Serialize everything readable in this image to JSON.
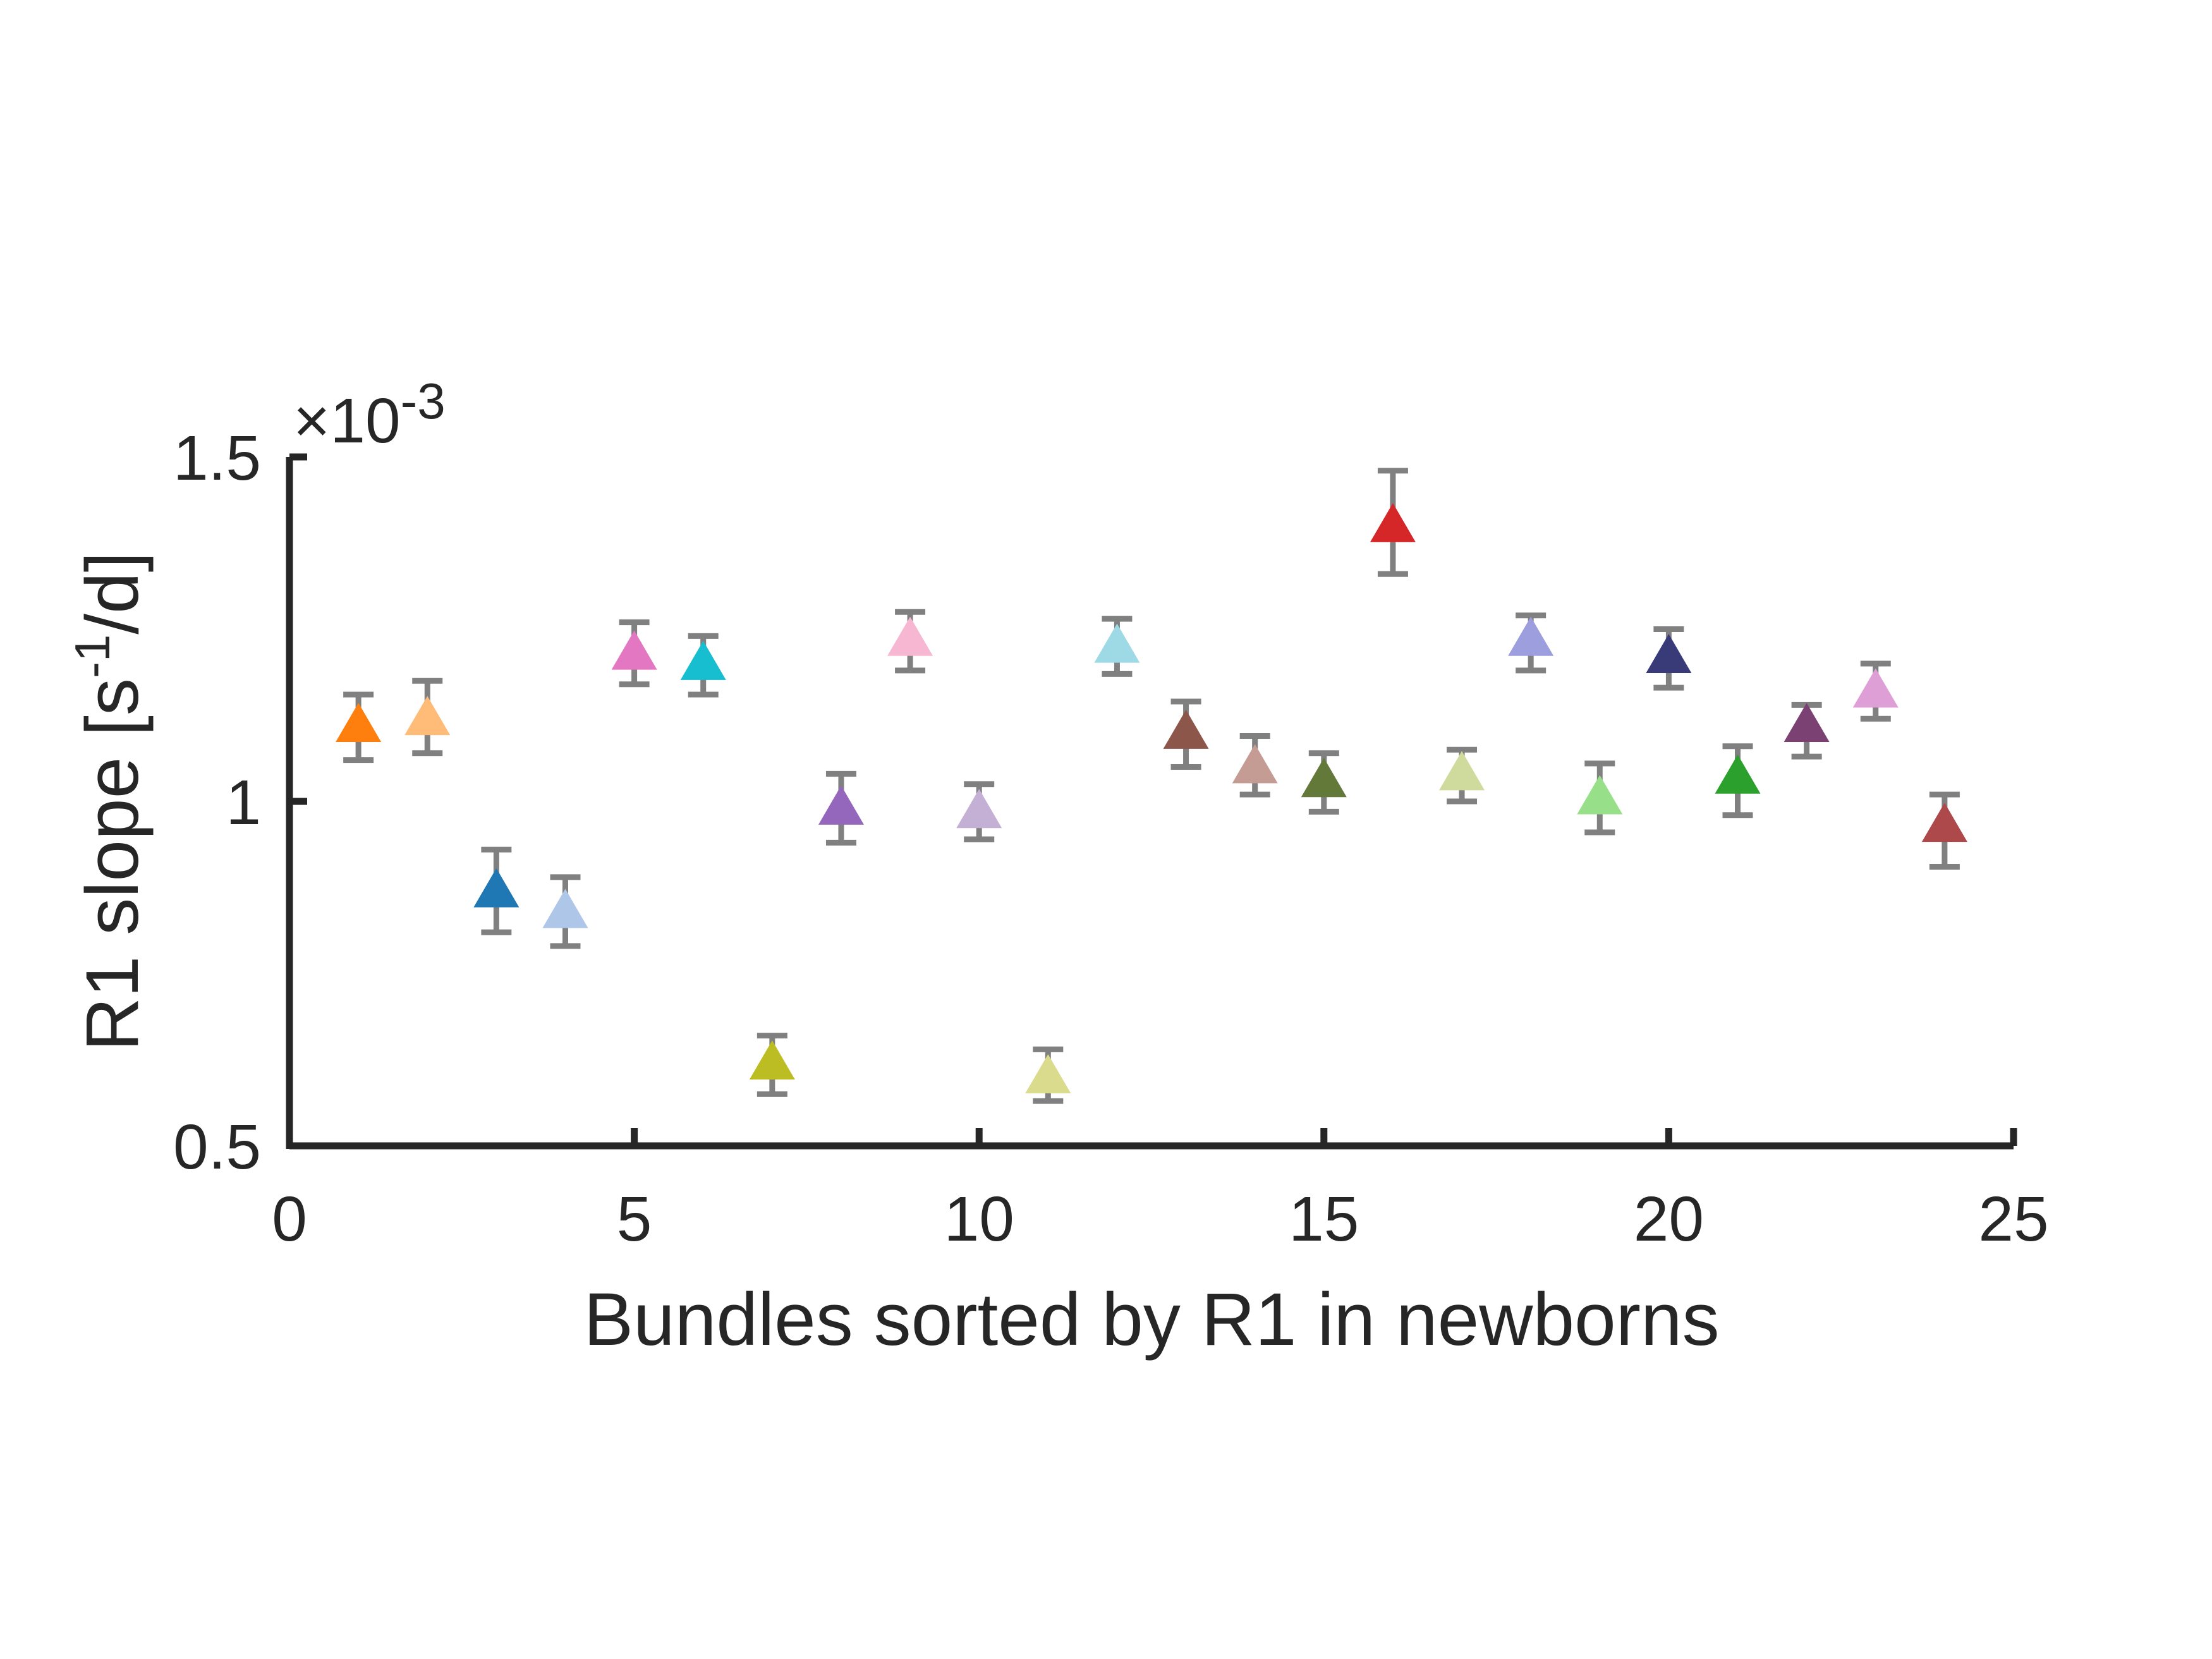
{
  "chart_data": {
    "type": "scatter",
    "xlabel": "Bundles sorted by R1 in newborns",
    "ylabel_main": "R1 slope [s",
    "ylabel_sup": "-1",
    "ylabel_tail": "/d]",
    "y_exponent_label": "×10",
    "y_exponent_power": "-3",
    "xlim": [
      0,
      25
    ],
    "ylim": [
      0.5,
      1.5
    ],
    "xticks": [
      0,
      5,
      10,
      15,
      20,
      25
    ],
    "xtick_labels": [
      "0",
      "5",
      "10",
      "15",
      "20",
      "25"
    ],
    "yticks": [
      0.5,
      1.0,
      1.5
    ],
    "ytick_labels": [
      "0.5",
      "1",
      "1.5"
    ],
    "y_scale_factor": 0.001,
    "marker": "triangle",
    "errorbar_color": "#808080",
    "points": [
      {
        "x": 1,
        "y": 1.11,
        "lo": 1.06,
        "hi": 1.155,
        "color": "#ff7f0e"
      },
      {
        "x": 2,
        "y": 1.12,
        "lo": 1.07,
        "hi": 1.175,
        "color": "#ffbb78"
      },
      {
        "x": 3,
        "y": 0.87,
        "lo": 0.81,
        "hi": 0.93,
        "color": "#1f77b4"
      },
      {
        "x": 4,
        "y": 0.84,
        "lo": 0.79,
        "hi": 0.89,
        "color": "#aec7e8"
      },
      {
        "x": 5,
        "y": 1.215,
        "lo": 1.17,
        "hi": 1.26,
        "color": "#e377c2"
      },
      {
        "x": 6,
        "y": 1.2,
        "lo": 1.155,
        "hi": 1.24,
        "color": "#17becf"
      },
      {
        "x": 7,
        "y": 0.62,
        "lo": 0.575,
        "hi": 0.66,
        "color": "#bcbd22"
      },
      {
        "x": 8,
        "y": 0.99,
        "lo": 0.94,
        "hi": 1.04,
        "color": "#9467bd"
      },
      {
        "x": 9,
        "y": 1.235,
        "lo": 1.19,
        "hi": 1.275,
        "color": "#f7b6d2"
      },
      {
        "x": 10,
        "y": 0.985,
        "lo": 0.945,
        "hi": 1.025,
        "color": "#c5b0d5"
      },
      {
        "x": 11,
        "y": 0.6,
        "lo": 0.565,
        "hi": 0.64,
        "color": "#dbdb8d"
      },
      {
        "x": 12,
        "y": 1.225,
        "lo": 1.185,
        "hi": 1.265,
        "color": "#9edae5"
      },
      {
        "x": 13,
        "y": 1.1,
        "lo": 1.05,
        "hi": 1.145,
        "color": "#8c564b"
      },
      {
        "x": 14,
        "y": 1.05,
        "lo": 1.01,
        "hi": 1.095,
        "color": "#c49c94"
      },
      {
        "x": 15,
        "y": 1.03,
        "lo": 0.985,
        "hi": 1.07,
        "color": "#637939"
      },
      {
        "x": 16,
        "y": 1.4,
        "lo": 1.33,
        "hi": 1.48,
        "color": "#d62728"
      },
      {
        "x": 17,
        "y": 1.04,
        "lo": 1.0,
        "hi": 1.075,
        "color": "#cedb9c"
      },
      {
        "x": 18,
        "y": 1.235,
        "lo": 1.19,
        "hi": 1.27,
        "color": "#9c9ede"
      },
      {
        "x": 19,
        "y": 1.005,
        "lo": 0.955,
        "hi": 1.055,
        "color": "#98df8a"
      },
      {
        "x": 20,
        "y": 1.21,
        "lo": 1.165,
        "hi": 1.25,
        "color": "#393b79"
      },
      {
        "x": 21,
        "y": 1.035,
        "lo": 0.98,
        "hi": 1.08,
        "color": "#2ca02c"
      },
      {
        "x": 22,
        "y": 1.11,
        "lo": 1.065,
        "hi": 1.14,
        "color": "#7b4173"
      },
      {
        "x": 23,
        "y": 1.16,
        "lo": 1.12,
        "hi": 1.2,
        "color": "#de9ed6"
      },
      {
        "x": 24,
        "y": 0.965,
        "lo": 0.905,
        "hi": 1.01,
        "color": "#ad494a"
      }
    ]
  }
}
